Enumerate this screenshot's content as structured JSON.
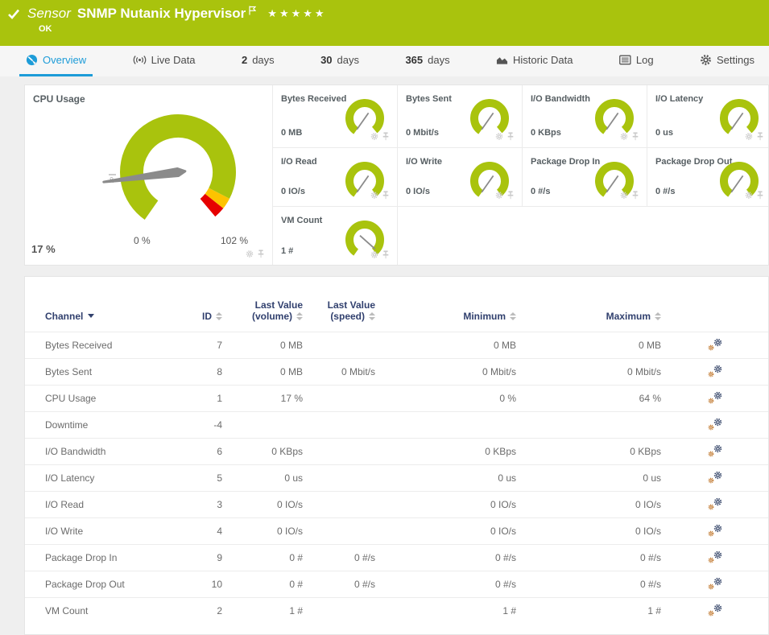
{
  "topbar": {
    "type_label": "Sensor",
    "sensor_name": "SNMP Nutanix Hypervisor",
    "status": "OK",
    "stars": "★★★★★"
  },
  "tabs": {
    "overview": {
      "label": "Overview"
    },
    "live_data": {
      "label": "Live Data"
    },
    "days2": {
      "num": "2",
      "unit": "days"
    },
    "days30": {
      "num": "30",
      "unit": "days"
    },
    "days365": {
      "num": "365",
      "unit": "days"
    },
    "historic": {
      "label": "Historic Data"
    },
    "log": {
      "label": "Log"
    },
    "settings": {
      "label": "Settings"
    }
  },
  "gauges": {
    "cpu": {
      "title": "CPU Usage",
      "value": 17,
      "max": 102,
      "value_label": "17 %",
      "min_label": "0 %",
      "max_label": "102 %",
      "avg_marker": "x̄",
      "zones": {
        "green_end": 0.92,
        "yellow_end": 0.96
      }
    },
    "minis": [
      {
        "title": "Bytes Received",
        "value_label": "0 MB",
        "percent": 0
      },
      {
        "title": "Bytes Sent",
        "value_label": "0 Mbit/s",
        "percent": 0
      },
      {
        "title": "I/O Bandwidth",
        "value_label": "0 KBps",
        "percent": 0
      },
      {
        "title": "I/O Latency",
        "value_label": "0 us",
        "percent": 0
      },
      {
        "title": "I/O Read",
        "value_label": "0 IO/s",
        "percent": 0
      },
      {
        "title": "I/O Write",
        "value_label": "0 IO/s",
        "percent": 0
      },
      {
        "title": "Package Drop In",
        "value_label": "0 #/s",
        "percent": 0
      },
      {
        "title": "Package Drop Out",
        "value_label": "0 #/s",
        "percent": 0
      },
      {
        "title": "VM Count",
        "value_label": "1 #",
        "percent": 0.97
      }
    ]
  },
  "channel_table": {
    "columns": [
      {
        "label": "Channel"
      },
      {
        "label": "ID"
      },
      {
        "label": "Last Value",
        "label2": "(volume)"
      },
      {
        "label": "Last Value",
        "label2": "(speed)"
      },
      {
        "label": "Minimum"
      },
      {
        "label": "Maximum"
      }
    ],
    "rows": [
      {
        "channel": "Bytes Received",
        "id": "7",
        "last_volume": "0 MB",
        "last_speed": "",
        "minimum": "0 MB",
        "maximum": "0 MB"
      },
      {
        "channel": "Bytes Sent",
        "id": "8",
        "last_volume": "0 MB",
        "last_speed": "0 Mbit/s",
        "minimum": "0 Mbit/s",
        "maximum": "0 Mbit/s"
      },
      {
        "channel": "CPU Usage",
        "id": "1",
        "last_volume": "17 %",
        "last_speed": "",
        "minimum": "0 %",
        "maximum": "64 %"
      },
      {
        "channel": "Downtime",
        "id": "-4",
        "last_volume": "",
        "last_speed": "",
        "minimum": "",
        "maximum": ""
      },
      {
        "channel": "I/O Bandwidth",
        "id": "6",
        "last_volume": "0 KBps",
        "last_speed": "",
        "minimum": "0 KBps",
        "maximum": "0 KBps"
      },
      {
        "channel": "I/O Latency",
        "id": "5",
        "last_volume": "0 us",
        "last_speed": "",
        "minimum": "0 us",
        "maximum": "0 us"
      },
      {
        "channel": "I/O Read",
        "id": "3",
        "last_volume": "0 IO/s",
        "last_speed": "",
        "minimum": "0 IO/s",
        "maximum": "0 IO/s"
      },
      {
        "channel": "I/O Write",
        "id": "4",
        "last_volume": "0 IO/s",
        "last_speed": "",
        "minimum": "0 IO/s",
        "maximum": "0 IO/s"
      },
      {
        "channel": "Package Drop In",
        "id": "9",
        "last_volume": "0 #",
        "last_speed": "0 #/s",
        "minimum": "0 #/s",
        "maximum": "0 #/s"
      },
      {
        "channel": "Package Drop Out",
        "id": "10",
        "last_volume": "0 #",
        "last_speed": "0 #/s",
        "minimum": "0 #/s",
        "maximum": "0 #/s"
      },
      {
        "channel": "VM Count",
        "id": "2",
        "last_volume": "1 #",
        "last_speed": "",
        "minimum": "1 #",
        "maximum": "1 #"
      }
    ]
  },
  "colors": {
    "brand_green": "#a9c30d",
    "accent_blue": "#1d9cd8",
    "gauge_green": "#a9c30d",
    "gauge_yellow": "#fdc300",
    "gauge_red": "#e60000",
    "header_navy": "#31406e"
  }
}
